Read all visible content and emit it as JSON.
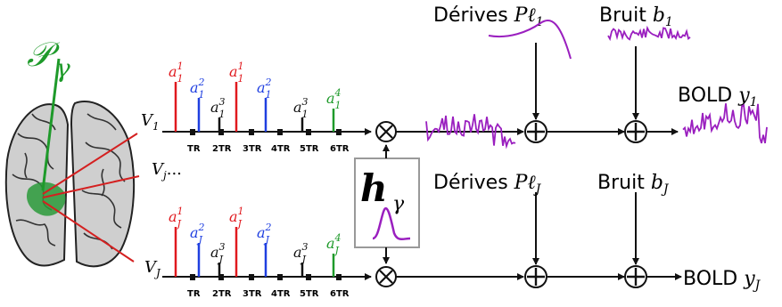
{
  "parcel": {
    "symbol": "𝒫",
    "sub": "γ"
  },
  "voxel_labels": {
    "v1": "V",
    "v1_sub": "1",
    "vj": "V",
    "vj_sub": "j",
    "vj_ellipsis": "...",
    "vJ": "V",
    "vJ_sub": "J"
  },
  "stimuli_top": [
    {
      "sub": "1",
      "sup": "1",
      "color": "#e0191e"
    },
    {
      "sub": "1",
      "sup": "2",
      "color": "#1f3fe0"
    },
    {
      "sub": "1",
      "sup": "3",
      "color": "#111111"
    },
    {
      "sub": "1",
      "sup": "1",
      "color": "#e0191e"
    },
    {
      "sub": "1",
      "sup": "2",
      "color": "#1f3fe0"
    },
    {
      "sub": "1",
      "sup": "3",
      "color": "#111111"
    },
    {
      "sub": "1",
      "sup": "4",
      "color": "#1e9a2a"
    }
  ],
  "stimuli_bottom": [
    {
      "sub": "J",
      "sup": "1",
      "color": "#e0191e"
    },
    {
      "sub": "J",
      "sup": "2",
      "color": "#1f3fe0"
    },
    {
      "sub": "J",
      "sup": "3",
      "color": "#111111"
    },
    {
      "sub": "J",
      "sup": "1",
      "color": "#e0191e"
    },
    {
      "sub": "J",
      "sup": "2",
      "color": "#1f3fe0"
    },
    {
      "sub": "J",
      "sup": "3",
      "color": "#111111"
    },
    {
      "sub": "J",
      "sup": "4",
      "color": "#1e9a2a"
    }
  ],
  "stimulus_letter": "a",
  "tr_ticks": [
    "TR",
    "2TR",
    "3TR",
    "4TR",
    "5TR",
    "6TR"
  ],
  "hrf": {
    "symbol": "h",
    "sub": "γ"
  },
  "drift_top": {
    "label": "Dérives ",
    "sym": "Pℓ",
    "sub": "1"
  },
  "drift_bottom": {
    "label": "Dérives ",
    "sym": "Pℓ",
    "sub": "J"
  },
  "noise_top": {
    "label": "Bruit ",
    "sym": "b",
    "sub": "1"
  },
  "noise_bottom": {
    "label": "Bruit ",
    "sym": "b",
    "sub": "J"
  },
  "bold_top": {
    "label": "BOLD ",
    "sym": "y",
    "sub": "1"
  },
  "bold_bottom": {
    "label": "BOLD ",
    "sym": "y",
    "sub": "J"
  },
  "operators": {
    "multiply": "⊗",
    "add": "⊕"
  },
  "colors": {
    "signal": "#9a1fbf",
    "parcel": "#1e9a2a",
    "pointer": "#d42020",
    "axis": "#111111"
  }
}
